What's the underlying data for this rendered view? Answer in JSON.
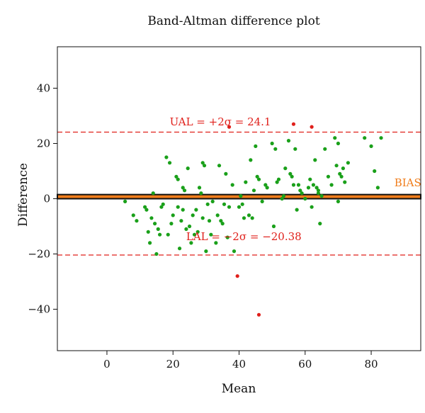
{
  "chart_data": {
    "type": "scatter",
    "title": "Band-Altman difference plot",
    "xlabel": "Mean",
    "ylabel": "Difference",
    "xlim": [
      -15,
      95
    ],
    "ylim": [
      -55,
      55
    ],
    "xticks": [
      0,
      20,
      40,
      60,
      80
    ],
    "yticks": [
      -40,
      -20,
      0,
      20,
      40
    ],
    "xtick_labels": [
      "0",
      "20",
      "40",
      "60",
      "80"
    ],
    "ytick_labels": [
      "−40",
      "−20",
      "0",
      "20",
      "40"
    ],
    "grid": false,
    "colors": {
      "green": "#1aa01a",
      "red": "#e0201b",
      "band_fill": "#f07d1b",
      "band_edge": "#111111"
    },
    "bias": {
      "label": "BIAS",
      "band": [
        0,
        1.5
      ],
      "label_x": 87,
      "label_y": 4.5
    },
    "upper_limit": {
      "label": "UAL = +2σ = 24.1",
      "value": 24.1,
      "label_x": 19,
      "label_y": 26.5
    },
    "lower_limit": {
      "label": "LAL = −2σ = −20.38",
      "value": -20.38,
      "label_x": 24,
      "label_y": -15
    },
    "series": [
      {
        "color": "green",
        "points": [
          [
            5.5,
            -1
          ],
          [
            8,
            -6
          ],
          [
            9,
            -8
          ],
          [
            11.5,
            -3
          ],
          [
            12,
            -4
          ],
          [
            12.5,
            -12
          ],
          [
            13,
            -16
          ],
          [
            13.5,
            -7
          ],
          [
            14,
            2
          ],
          [
            14.5,
            -9
          ],
          [
            15,
            -20
          ],
          [
            15.5,
            -11
          ],
          [
            16,
            -13
          ],
          [
            16.5,
            -3
          ],
          [
            17,
            -2
          ],
          [
            18,
            15
          ],
          [
            18.5,
            -13
          ],
          [
            19,
            13
          ],
          [
            19.5,
            -9
          ],
          [
            20,
            -6
          ],
          [
            21,
            8
          ],
          [
            21.5,
            7
          ],
          [
            21.5,
            -3
          ],
          [
            22,
            -18
          ],
          [
            22.5,
            -8
          ],
          [
            23,
            4
          ],
          [
            23,
            -4
          ],
          [
            23.5,
            3
          ],
          [
            24,
            -11
          ],
          [
            24.5,
            11
          ],
          [
            25,
            -10
          ],
          [
            25.5,
            -16
          ],
          [
            26,
            -6
          ],
          [
            26.5,
            -13
          ],
          [
            27,
            -4
          ],
          [
            27.5,
            -12
          ],
          [
            28,
            4
          ],
          [
            28.5,
            2
          ],
          [
            29,
            13
          ],
          [
            29,
            -7
          ],
          [
            29.5,
            12
          ],
          [
            30,
            -19
          ],
          [
            30.5,
            -2
          ],
          [
            31,
            -8
          ],
          [
            31.5,
            -13
          ],
          [
            32,
            -1
          ],
          [
            33,
            -16
          ],
          [
            33.5,
            -6
          ],
          [
            34,
            12
          ],
          [
            34.5,
            -8
          ],
          [
            35,
            -9
          ],
          [
            35.5,
            -2
          ],
          [
            36,
            9
          ],
          [
            36.5,
            -14
          ],
          [
            37,
            -3
          ],
          [
            38,
            5
          ],
          [
            38.5,
            -19
          ],
          [
            40,
            -3
          ],
          [
            40.5,
            1
          ],
          [
            41,
            -2
          ],
          [
            41.5,
            -7
          ],
          [
            42,
            6
          ],
          [
            43,
            -6
          ],
          [
            43.5,
            14
          ],
          [
            44,
            -7
          ],
          [
            44.5,
            3
          ],
          [
            45,
            19
          ],
          [
            45.5,
            8
          ],
          [
            46,
            7
          ],
          [
            47,
            -1
          ],
          [
            48,
            5
          ],
          [
            48.5,
            4
          ],
          [
            50,
            20
          ],
          [
            50.5,
            -10
          ],
          [
            51,
            18
          ],
          [
            51.5,
            6
          ],
          [
            52,
            7
          ],
          [
            53,
            0
          ],
          [
            53.5,
            1
          ],
          [
            54,
            11
          ],
          [
            55,
            21
          ],
          [
            55.5,
            9
          ],
          [
            56,
            8
          ],
          [
            56.5,
            5
          ],
          [
            57,
            18
          ],
          [
            57.5,
            -4
          ],
          [
            58,
            5
          ],
          [
            58.5,
            3
          ],
          [
            59,
            2
          ],
          [
            60,
            0
          ],
          [
            61,
            4
          ],
          [
            61.5,
            7
          ],
          [
            62,
            -3
          ],
          [
            62.5,
            5
          ],
          [
            63,
            14
          ],
          [
            63.5,
            4
          ],
          [
            64,
            3
          ],
          [
            64.5,
            -9
          ],
          [
            65,
            1
          ],
          [
            66,
            18
          ],
          [
            67,
            8
          ],
          [
            68,
            5
          ],
          [
            69,
            22
          ],
          [
            69.5,
            12
          ],
          [
            70,
            20
          ],
          [
            70.5,
            9
          ],
          [
            71,
            8
          ],
          [
            71.5,
            11
          ],
          [
            72,
            6
          ],
          [
            73,
            13
          ],
          [
            78,
            22
          ],
          [
            80,
            19
          ],
          [
            81,
            10
          ],
          [
            82,
            4
          ],
          [
            83,
            22
          ],
          [
            70,
            -1
          ],
          [
            64,
            2
          ]
        ]
      },
      {
        "color": "red",
        "points": [
          [
            37,
            26
          ],
          [
            56.5,
            27
          ],
          [
            62,
            26
          ],
          [
            39.5,
            -28
          ],
          [
            46,
            -42
          ]
        ]
      }
    ]
  }
}
